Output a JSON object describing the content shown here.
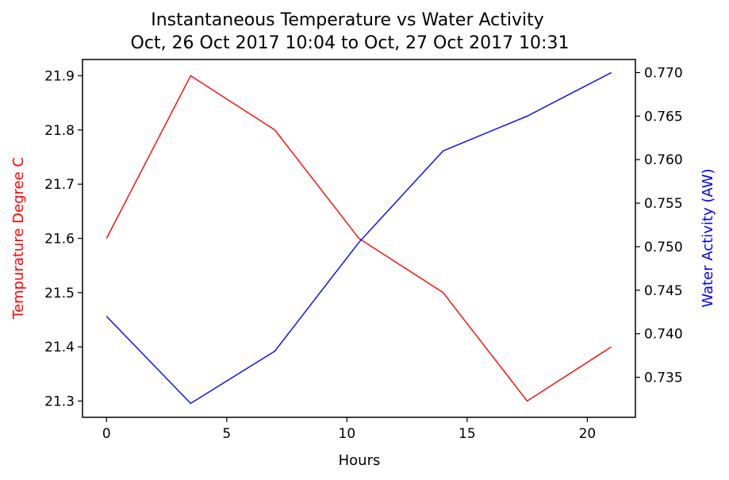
{
  "chart_data": {
    "type": "line",
    "title": "Instantaneous Temperature vs Water Activity",
    "subtitle": "Oct, 26 Oct 2017 10:04 to Oct, 27 Oct 2017 10:31",
    "xlabel": "Hours",
    "ylabel_left": "Tempurature Degree C",
    "ylabel_right": "Water Activity (AW)",
    "xlim": [
      -1,
      22
    ],
    "ylim_left": [
      21.27,
      21.93
    ],
    "ylim_right": [
      0.7304,
      0.7715
    ],
    "x_ticks": [
      "0",
      "5",
      "10",
      "15",
      "20"
    ],
    "y_left_ticks": [
      "21.3",
      "21.4",
      "21.5",
      "21.6",
      "21.7",
      "21.8",
      "21.9"
    ],
    "y_right_ticks": [
      "0.735",
      "0.740",
      "0.745",
      "0.750",
      "0.755",
      "0.760",
      "0.765",
      "0.770"
    ],
    "grid": false,
    "legend": "none",
    "series": [
      {
        "axis": "left",
        "color": "#ff0000",
        "x": [
          0,
          3.5,
          7,
          10.5,
          14,
          17.5,
          21
        ],
        "values": [
          21.6,
          21.9,
          21.8,
          21.6,
          21.5,
          21.3,
          21.4
        ]
      },
      {
        "axis": "right",
        "color": "#0000ff",
        "x": [
          0,
          3.5,
          7,
          10.5,
          14,
          17.5,
          21
        ],
        "values": [
          0.742,
          0.732,
          0.738,
          0.7505,
          0.761,
          0.765,
          0.77
        ]
      }
    ]
  }
}
